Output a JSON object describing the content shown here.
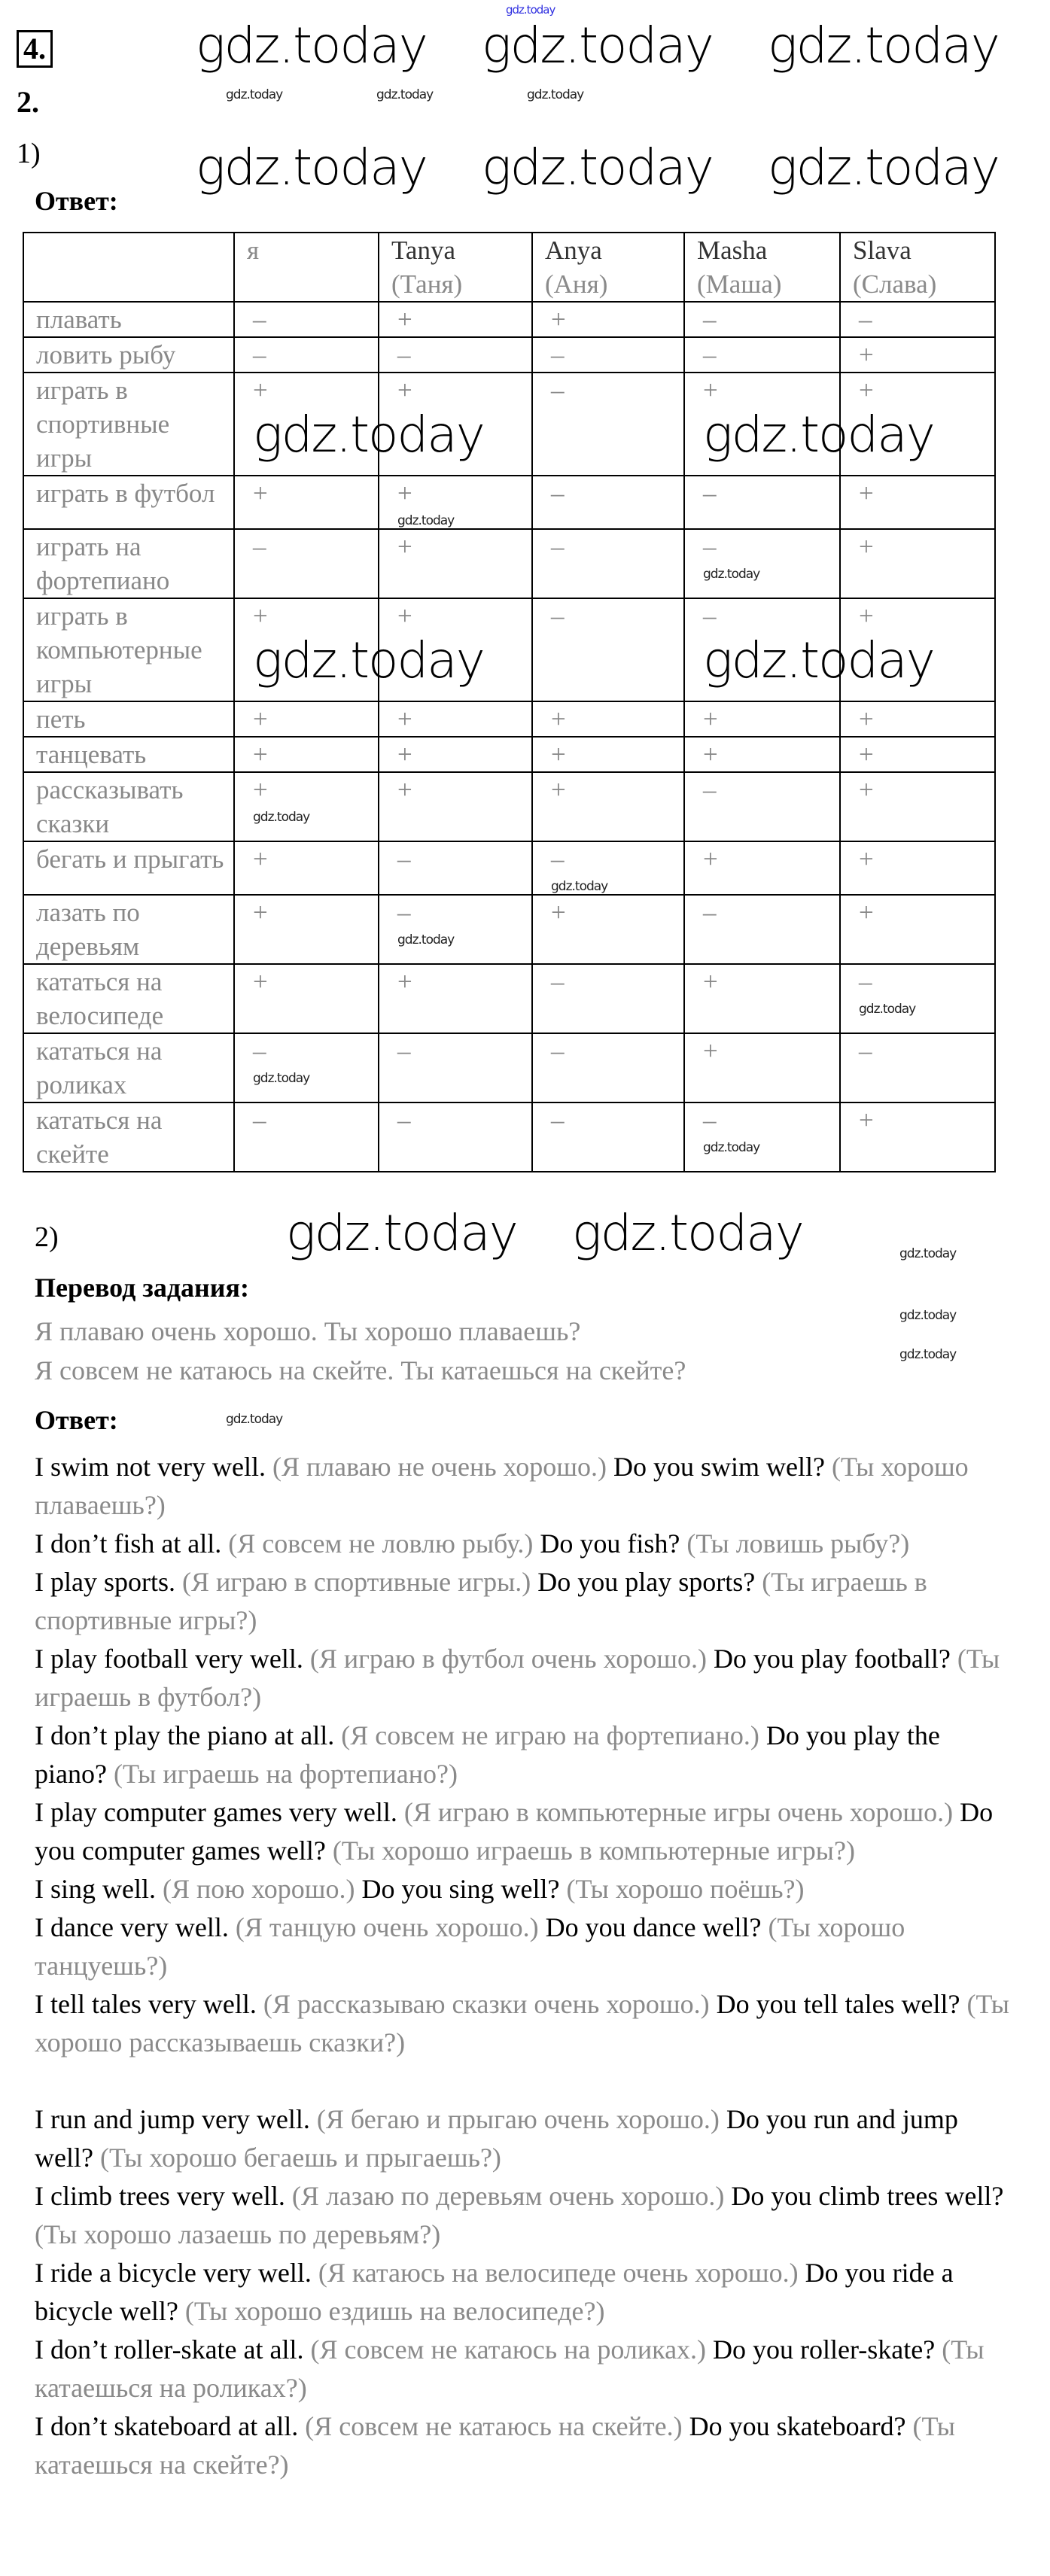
{
  "watermark": "gdz.today",
  "task_number": "4.",
  "exercise_number": "2.",
  "part1": {
    "label": "1)",
    "answer_label": "Ответ:",
    "table": {
      "columns": [
        {
          "name": "я",
          "translation": ""
        },
        {
          "name": "Tanya",
          "translation": "(Таня)"
        },
        {
          "name": "Anya",
          "translation": "(Аня)"
        },
        {
          "name": "Masha",
          "translation": "(Маша)"
        },
        {
          "name": "Slava",
          "translation": "(Слава)"
        }
      ],
      "rows": [
        {
          "activity": "плавать",
          "values": [
            "–",
            "+",
            "+",
            "–",
            "–"
          ]
        },
        {
          "activity": "ловить рыбу",
          "values": [
            "–",
            "–",
            "–",
            "–",
            "+"
          ]
        },
        {
          "activity": "играть в спортивные игры",
          "values": [
            "+",
            "+",
            "–",
            "+",
            "+"
          ]
        },
        {
          "activity": "играть в футбол",
          "values": [
            "+",
            "+",
            "–",
            "–",
            "+"
          ]
        },
        {
          "activity": "играть на фортепиано",
          "values": [
            "–",
            "+",
            "–",
            "–",
            "+"
          ]
        },
        {
          "activity": "играть в компьютерные игры",
          "values": [
            "+",
            "+",
            "–",
            "–",
            "+"
          ]
        },
        {
          "activity": "петь",
          "values": [
            "+",
            "+",
            "+",
            "+",
            "+"
          ]
        },
        {
          "activity": "танцевать",
          "values": [
            "+",
            "+",
            "+",
            "+",
            "+"
          ]
        },
        {
          "activity": "рассказывать сказки",
          "values": [
            "+",
            "+",
            "+",
            "–",
            "+"
          ]
        },
        {
          "activity": "бегать и прыгать",
          "values": [
            "+",
            "–",
            "–",
            "+",
            "+"
          ]
        },
        {
          "activity": "лазать по деревьям",
          "values": [
            "+",
            "–",
            "+",
            "–",
            "+"
          ]
        },
        {
          "activity": "кататься на велосипеде",
          "values": [
            "+",
            "+",
            "–",
            "+",
            "–"
          ]
        },
        {
          "activity": "кататься на роликах",
          "values": [
            "–",
            "–",
            "–",
            "+",
            "–"
          ]
        },
        {
          "activity": "кататься на скейте",
          "values": [
            "–",
            "–",
            "–",
            "–",
            "+"
          ]
        }
      ]
    }
  },
  "part2": {
    "label": "2)",
    "translation_label": "Перевод задания:",
    "translation_lines": [
      "Я плаваю очень хорошо. Ты хорошо плаваешь?",
      "Я совсем не катаюсь на скейте. Ты катаешься на скейте?"
    ],
    "answer_label": "Ответ:",
    "answers": [
      {
        "en": "I swim not very well.",
        "ru": "(Я плаваю не очень хорошо.)",
        "q": "Do you swim well?",
        "q_ru": "(Ты хорошо плаваешь?)"
      },
      {
        "en": "I don’t fish at all.",
        "ru": "(Я совсем не ловлю рыбу.)",
        "q": "Do you fish?",
        "q_ru": "(Ты ловишь рыбу?)"
      },
      {
        "en": "I play sports.",
        "ru": "(Я играю в спортивные игры.)",
        "q": "Do you play sports?",
        "q_ru": "(Ты играешь в спортивные игры?)"
      },
      {
        "en": "I play football very well.",
        "ru": "(Я играю в футбол очень хорошо.)",
        "q": "Do you play football?",
        "q_ru": "(Ты играешь в футбол?)"
      },
      {
        "en": "I don’t play the piano at all.",
        "ru": "(Я совсем не играю на фортепиано.)",
        "q": "Do you play the piano?",
        "q_ru": "(Ты играешь на фортепиано?)"
      },
      {
        "en": "I play computer games very well.",
        "ru": "(Я играю в компьютерные игры очень хорошо.)",
        "q": "Do you computer games well?",
        "q_ru": "(Ты хорошо играешь в компьютерные игры?)"
      },
      {
        "en": "I sing well.",
        "ru": "(Я пою хорошо.)",
        "q": "Do you sing well?",
        "q_ru": "(Ты хорошо поёшь?)"
      },
      {
        "en": "I dance very well.",
        "ru": "(Я танцую очень хорошо.)",
        "q": "Do you dance well?",
        "q_ru": "(Ты хорошо танцуешь?)"
      },
      {
        "en": "I tell tales very well.",
        "ru": "(Я рассказываю сказки очень хорошо.)",
        "q": "Do you tell tales well?",
        "q_ru": "(Ты хорошо рассказываешь сказки?)"
      },
      {
        "en": "I run and jump very well.",
        "ru": "(Я бегаю и прыгаю очень хорошо.)",
        "q": "Do you run and jump well?",
        "q_ru": "(Ты хорошо бегаешь и прыгаешь?)"
      },
      {
        "en": "I climb trees very well.",
        "ru": "(Я лазаю по деревьям очень хорошо.)",
        "q": "Do you climb trees well?",
        "q_ru": "(Ты хорошо лазаешь по деревьям?)"
      },
      {
        "en": "I ride a bicycle very well.",
        "ru": "(Я катаюсь на велосипеде очень хорошо.)",
        "q": "Do you ride a bicycle well?",
        "q_ru": "(Ты хорошо ездишь на велосипеде?)"
      },
      {
        "en": "I don’t roller-skate at all.",
        "ru": "(Я совсем не катаюсь на роликах.)",
        "q": "Do you roller-skate?",
        "q_ru": "(Ты катаешься на роликах?)"
      },
      {
        "en": "I don’t skateboard at all.",
        "ru": "(Я совсем не катаюсь на скейте.)",
        "q": "Do you skateboard?",
        "q_ru": "(Ты катаешься на скейте?)"
      }
    ]
  },
  "colors": {
    "text": "#000000",
    "translation_grey": "#8a8a8a",
    "top_watermark": "#3030e0"
  }
}
